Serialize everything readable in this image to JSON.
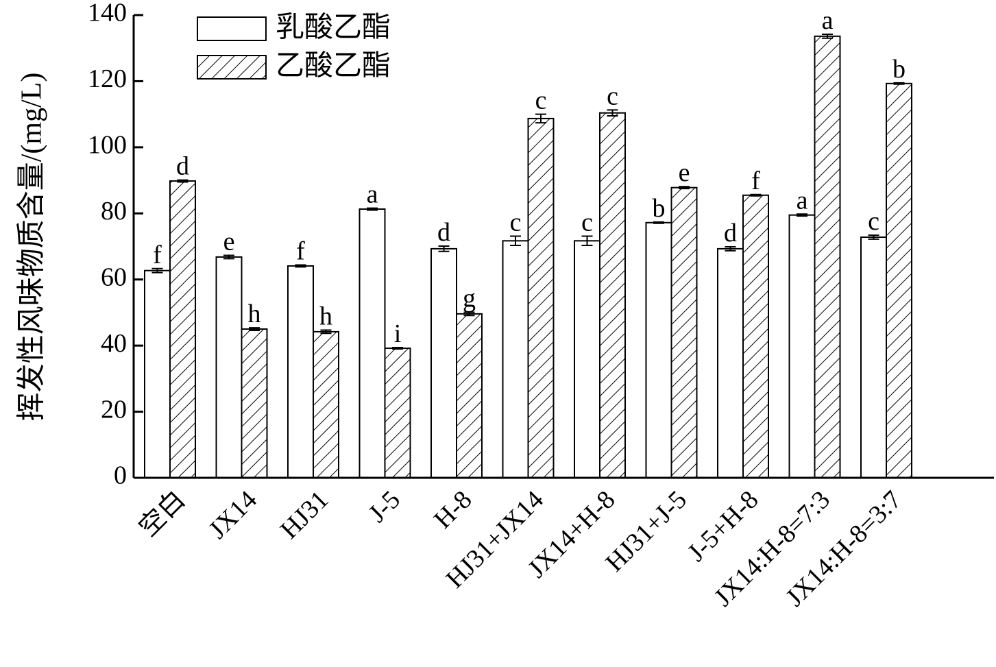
{
  "chart_data": {
    "type": "bar",
    "y_label": "挥发性风味物质含量/(mg/L)",
    "categories": [
      "空白",
      "JX14",
      "HJ31",
      "J-5",
      "H-8",
      "HJ31+JX14",
      "JX14+H-8",
      "HJ31+J-5",
      "J-5+H-8",
      "JX14:H-8=7:3",
      "JX14:H-8=3:7"
    ],
    "series": [
      {
        "name": "乳酸乙酯",
        "color": "#ffffff",
        "hatch": false,
        "values": [
          62.7,
          66.8,
          64.1,
          81.3,
          69.3,
          71.7,
          71.7,
          77.2,
          69.3,
          79.5,
          72.8
        ],
        "errors": [
          0.6,
          0.5,
          0.3,
          0.3,
          0.8,
          1.4,
          1.4,
          0.2,
          0.6,
          0.3,
          0.6
        ],
        "letters": [
          "f",
          "e",
          "f",
          "a",
          "d",
          "c",
          "c",
          "b",
          "d",
          "a",
          "c"
        ]
      },
      {
        "name": "乙酸乙酯",
        "color": "#ffffff",
        "hatch": true,
        "values": [
          89.8,
          45.0,
          44.2,
          39.2,
          49.6,
          108.7,
          110.4,
          87.8,
          85.5,
          133.6,
          119.3
        ],
        "errors": [
          0.3,
          0.4,
          0.5,
          0.2,
          0.5,
          1.3,
          0.9,
          0.3,
          0.2,
          0.6,
          0.2
        ],
        "letters": [
          "d",
          "h",
          "h",
          "i",
          "g",
          "c",
          "c",
          "e",
          "f",
          "a",
          "b"
        ]
      }
    ],
    "ylim": [
      0,
      140
    ],
    "yticks": [
      0,
      20,
      40,
      60,
      80,
      100,
      120,
      140
    ],
    "grid": false,
    "legend": "upper left"
  }
}
